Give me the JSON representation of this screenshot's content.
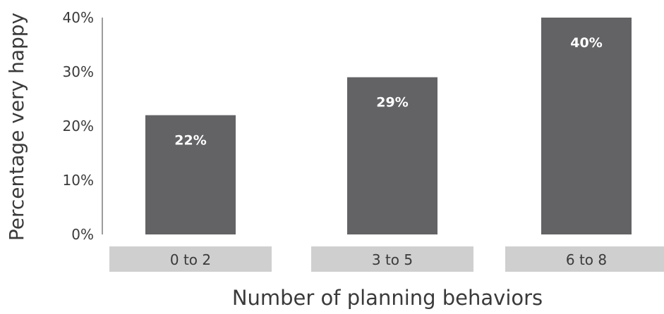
{
  "chart_data": {
    "type": "bar",
    "title": "",
    "xlabel": "Number of planning behaviors",
    "ylabel": "Percentage very happy",
    "categories": [
      "0 to 2",
      "3 to 5",
      "6 to 8"
    ],
    "values": [
      22,
      29,
      40
    ],
    "data_labels": [
      "22%",
      "29%",
      "40%"
    ],
    "y_ticks": [
      {
        "value": 0,
        "label": "0%"
      },
      {
        "value": 10,
        "label": "10%"
      },
      {
        "value": 20,
        "label": "20%"
      },
      {
        "value": 30,
        "label": "30%"
      },
      {
        "value": 40,
        "label": "40%"
      }
    ],
    "ylim": [
      0,
      40
    ],
    "grid": false,
    "legend": "none",
    "colors": {
      "bar": "#636366",
      "bar_label": "#ffffff",
      "category_box": "#cfcfcf",
      "text": "#3a3a3a",
      "axis": "#3a3a3a"
    }
  }
}
